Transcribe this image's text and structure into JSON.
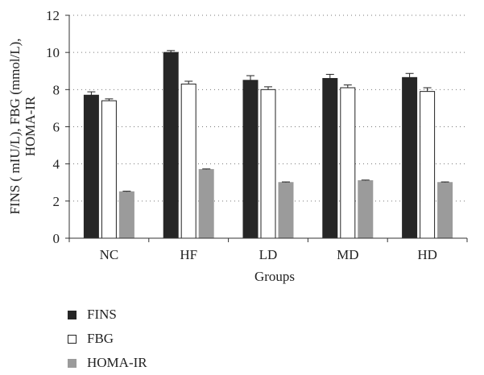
{
  "chart_data": {
    "type": "bar",
    "title": "",
    "xlabel": "Groups",
    "ylabel": "FINS ( mIU/L), FBG (mmol/L), HOMA-IR",
    "ylim": [
      0,
      12
    ],
    "yticks": [
      0,
      2,
      4,
      6,
      8,
      10,
      12
    ],
    "grid": "horizontal dotted",
    "legend_position": "bottom-left",
    "categories": [
      "NC",
      "HF",
      "LD",
      "MD",
      "HD"
    ],
    "series": [
      {
        "name": "FINS",
        "color": "#262626",
        "values": [
          7.7,
          10.0,
          8.5,
          8.6,
          8.65
        ],
        "errors": [
          0.18,
          0.1,
          0.25,
          0.22,
          0.22
        ]
      },
      {
        "name": "FBG",
        "color": "#ffffff",
        "values": [
          7.4,
          8.3,
          8.0,
          8.1,
          7.9
        ],
        "errors": [
          0.1,
          0.15,
          0.15,
          0.15,
          0.2
        ]
      },
      {
        "name": "HOMA-IR",
        "color": "#9b9b9b",
        "values": [
          2.5,
          3.7,
          3.0,
          3.1,
          3.0
        ],
        "errors": [
          0.03,
          0.03,
          0.03,
          0.03,
          0.03
        ]
      }
    ]
  }
}
